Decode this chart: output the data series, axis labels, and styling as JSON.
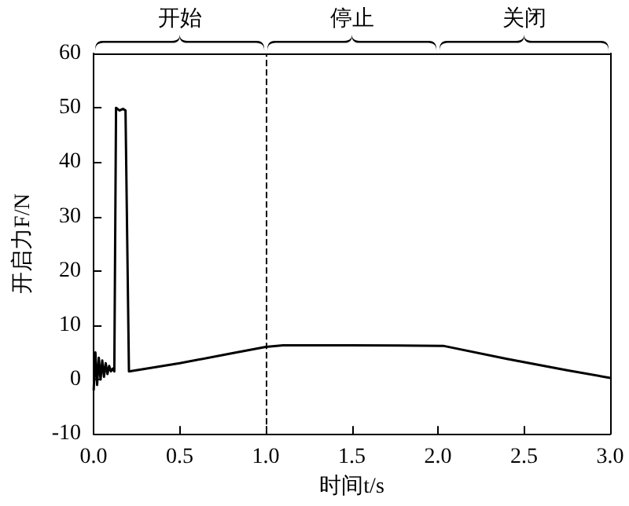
{
  "chart_data": {
    "type": "line",
    "xlabel": "时间t/s",
    "ylabel": "开启力F/N",
    "annotations": [
      "开始",
      "停止",
      "关闭"
    ],
    "series": [
      {
        "color": "#000000",
        "x": [
          0,
          0.01,
          0.02,
          0.03,
          0.04,
          0.05,
          0.06,
          0.07,
          0.08,
          0.09,
          0.1,
          0.11,
          0.12,
          0.125,
          0.13,
          0.15,
          0.17,
          0.185,
          0.19,
          0.205,
          0.21,
          0.5,
          0.8,
          1.0,
          1.1,
          1.5,
          2.03,
          2.4,
          2.75,
          3.0
        ],
        "values": [
          -2,
          5,
          -1,
          4,
          0,
          3.5,
          0.5,
          3,
          1,
          2.5,
          1.5,
          2,
          1.5,
          1.5,
          50,
          49.5,
          49.8,
          49.5,
          49.5,
          1.5,
          1.5,
          3,
          4.8,
          6,
          6.3,
          6.3,
          6.2,
          3.8,
          1.7,
          0.3
        ]
      }
    ],
    "xlim": [
      0,
      3
    ],
    "xticks": [
      {
        "value": 0,
        "label": "0.0"
      },
      0.5,
      {
        "value": 1,
        "label": "1.0"
      },
      1.5,
      {
        "value": 2,
        "label": "2.0"
      },
      2.5,
      {
        "value": 3,
        "label": "3.0"
      }
    ],
    "ylim": [
      -10,
      60
    ],
    "yticks": [
      -10,
      0,
      10,
      20,
      30,
      40,
      50,
      60
    ],
    "ref_lines": [
      {
        "axis": "x",
        "value": 1,
        "line_style": "dashed",
        "color": "#000000"
      }
    ],
    "grid": false,
    "marker": "none",
    "line_style": "solid"
  }
}
